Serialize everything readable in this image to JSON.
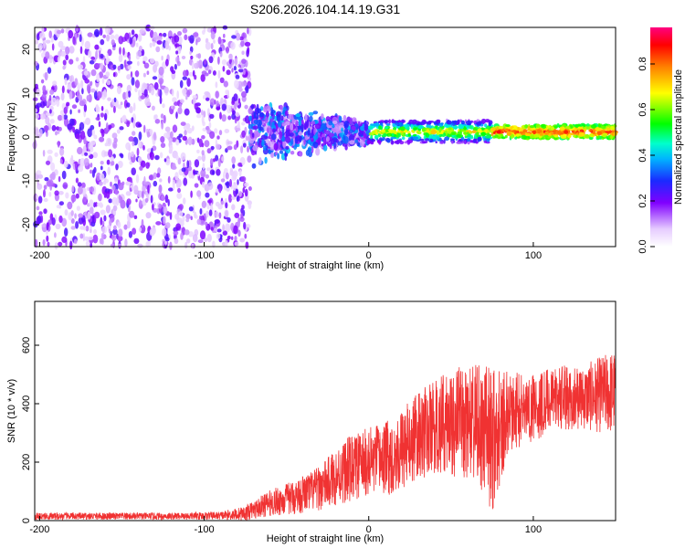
{
  "title": "S206.2026.104.14.19.G31",
  "colors": {
    "snr_line": "#f03232",
    "background": "#ffffff",
    "axis": "#000000"
  },
  "chart_data": [
    {
      "type": "heatmap",
      "name": "spectrogram",
      "xlabel": "Height of straight line (km)",
      "ylabel": "Frequency (Hz)",
      "xlim": [
        -203,
        150
      ],
      "ylim": [
        -25,
        25
      ],
      "xticks": [
        -200,
        -100,
        0,
        100
      ],
      "xtick_labels": [
        "-200",
        "-100",
        "0",
        "100"
      ],
      "yticks": [
        -20,
        -10,
        0,
        10,
        20
      ],
      "ytick_labels": [
        "-20",
        "-10",
        "0",
        "10",
        "20"
      ],
      "colorbar": {
        "label": "Normalized spectral amplitude",
        "range": [
          0,
          0.96
        ],
        "ticks": [
          0.0,
          0.2,
          0.4,
          0.6,
          0.8
        ],
        "tick_labels": [
          "0.0",
          "0.2",
          "0.4",
          "0.6",
          "0.8"
        ],
        "colormap": "rainbow (white-violet-blue-cyan-green-yellow-red-magenta)"
      },
      "regions": [
        {
          "x_range": [
            -203,
            -72
          ],
          "freq_range": [
            -25,
            25
          ],
          "amplitude": "low (0.05-0.25), broadband noise"
        },
        {
          "x_range": [
            -72,
            0
          ],
          "freq_range": [
            -8,
            8
          ],
          "amplitude": "low-medium (0.1-0.4), widening signal band"
        },
        {
          "x_range": [
            0,
            150
          ],
          "freq_center": 1.2,
          "freq_halfwidth": 1.2,
          "amplitude": "high (0.6-0.95), narrow signal line near 1 Hz"
        }
      ]
    },
    {
      "type": "line",
      "name": "snr",
      "xlabel": "Height of straight line (km)",
      "ylabel": "SNR (10 * v/v)",
      "xlim": [
        -203,
        150
      ],
      "ylim": [
        0,
        750
      ],
      "xticks": [
        -200,
        -100,
        0,
        100
      ],
      "xtick_labels": [
        "-200",
        "-100",
        "0",
        "100"
      ],
      "yticks": [
        0,
        200,
        400,
        600
      ],
      "ytick_labels": [
        "0",
        "200",
        "400",
        "600"
      ],
      "envelope": {
        "x": [
          -203,
          -180,
          -150,
          -120,
          -90,
          -75,
          -60,
          -45,
          -30,
          -15,
          0,
          15,
          30,
          45,
          60,
          70,
          75,
          85,
          100,
          115,
          130,
          150
        ],
        "mean": [
          15,
          15,
          15,
          15,
          17,
          25,
          60,
          80,
          110,
          170,
          200,
          220,
          290,
          330,
          340,
          300,
          280,
          370,
          390,
          420,
          420,
          440
        ],
        "spread": [
          12,
          12,
          12,
          12,
          14,
          25,
          45,
          60,
          75,
          110,
          120,
          130,
          150,
          170,
          200,
          230,
          250,
          140,
          120,
          110,
          110,
          150
        ]
      }
    }
  ]
}
